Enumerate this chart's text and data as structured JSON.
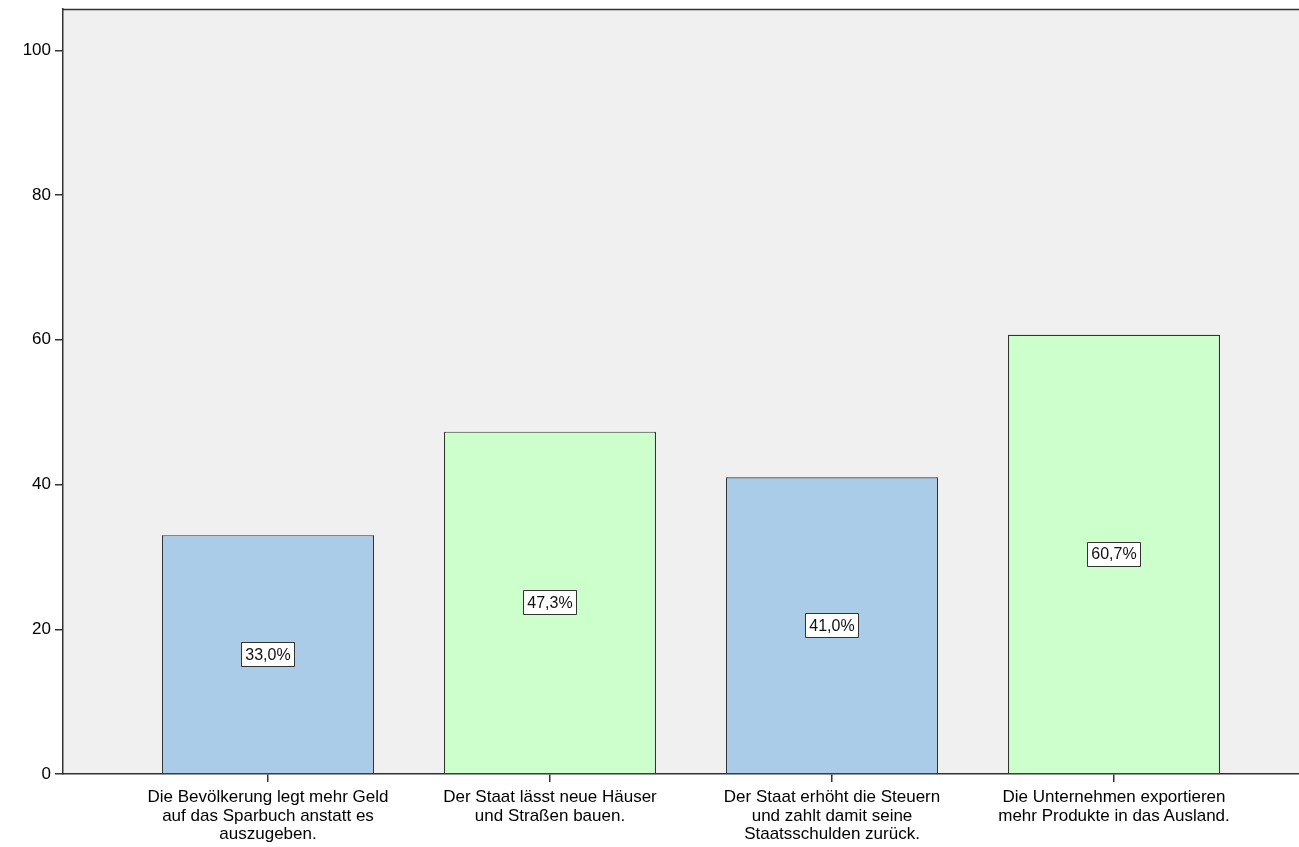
{
  "chart_data": {
    "type": "bar",
    "categories": [
      "Die Bevölkerung legt mehr Geld auf das Sparbuch anstatt es auszugeben.",
      "Der Staat lässt neue Häuser und Straßen bauen.",
      "Der Staat erhöht die Steuern und zahlt damit seine Staatsschulden zurück.",
      "Die Unternehmen exportieren mehr Produkte in das Ausland."
    ],
    "values": [
      33.0,
      47.3,
      41.0,
      60.7
    ],
    "colors": [
      "#aacce9",
      "#ccffcc",
      "#aacce9",
      "#ccffcc"
    ],
    "value_labels": [
      "33,0%",
      "47,3%",
      "41,0%",
      "60,7%"
    ],
    "ylim": [
      0,
      105.7
    ],
    "yticks": [
      0,
      20,
      40,
      60,
      80,
      100
    ]
  }
}
